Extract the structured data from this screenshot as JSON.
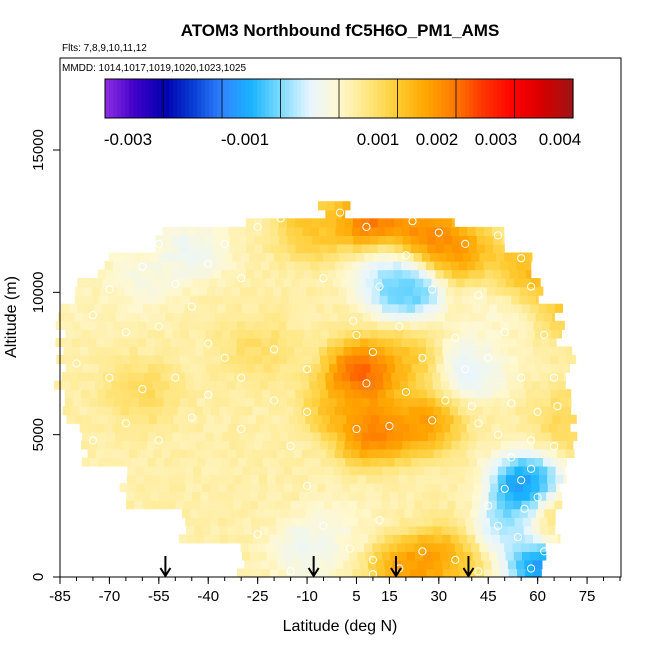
{
  "chart_data": {
    "type": "heatmap",
    "title": "ATOM3 Northbound fC5H6O_PM1_AMS",
    "flights_label": "Flts: 7,8,9,10,11,12",
    "mmdd_label": "MMDD: 1014,1017,1019,1020,1023,1025",
    "xlabel": "Latitude (deg N)",
    "ylabel": "Altitude (m)",
    "xlim": [
      -85,
      85
    ],
    "ylim": [
      0,
      17500
    ],
    "x_ticks": [
      "-85",
      "-70",
      "-55",
      "-40",
      "-25",
      "-10",
      "5",
      "15",
      "30",
      "45",
      "60",
      "75"
    ],
    "y_ticks": [
      "0",
      "5000",
      "10000",
      "15000"
    ],
    "colorbar": {
      "range": [
        -0.004,
        0.0042
      ],
      "tick_labels": [
        "-0.003",
        "-0.001",
        "0.001",
        "0.002",
        "0.003",
        "0.004"
      ],
      "colors": [
        "#8a2be2",
        "#3d00c8",
        "#0000b0",
        "#0a3fd6",
        "#2f86ff",
        "#19b4ff",
        "#7fdcff",
        "#e8f6ff",
        "#fff8d0",
        "#ffe680",
        "#ffcc33",
        "#ffa500",
        "#ff7a00",
        "#ff3300",
        "#ff0000",
        "#d60000",
        "#a21414"
      ]
    },
    "arrows_latitude": [
      -53,
      -8,
      17,
      39
    ],
    "grid": false,
    "legend": "none",
    "blobs": [
      {
        "lat": -8,
        "alt": 12300,
        "v": 0.0017
      },
      {
        "lat": 10,
        "alt": 12500,
        "v": 0.0032
      },
      {
        "lat": 25,
        "alt": 12000,
        "v": 0.0028
      },
      {
        "lat": 35,
        "alt": 11500,
        "v": 0.0025
      },
      {
        "lat": 55,
        "alt": 10500,
        "v": 0.0024
      },
      {
        "lat": 70,
        "alt": 9500,
        "v": 0.0016
      },
      {
        "lat": -45,
        "alt": 11500,
        "v": -0.0006
      },
      {
        "lat": -60,
        "alt": 10500,
        "v": -0.0003
      },
      {
        "lat": -75,
        "alt": 9500,
        "v": 0.0002
      },
      {
        "lat": 20,
        "alt": 10200,
        "v": -0.0022
      },
      {
        "lat": 14,
        "alt": 10800,
        "v": -0.0008
      },
      {
        "lat": 50,
        "alt": 9800,
        "v": -0.0004
      },
      {
        "lat": 48,
        "alt": 8200,
        "v": 0.0002
      },
      {
        "lat": 40,
        "alt": 7400,
        "v": -0.0009
      },
      {
        "lat": 7,
        "alt": 7200,
        "v": 0.0036
      },
      {
        "lat": 20,
        "alt": 7600,
        "v": 0.0016
      },
      {
        "lat": 10,
        "alt": 5100,
        "v": 0.003
      },
      {
        "lat": 25,
        "alt": 5400,
        "v": 0.0025
      },
      {
        "lat": 0,
        "alt": 6000,
        "v": 0.0018
      },
      {
        "lat": 56,
        "alt": 3200,
        "v": -0.003
      },
      {
        "lat": 52,
        "alt": 2000,
        "v": -0.0016
      },
      {
        "lat": 62,
        "alt": 400,
        "v": -0.003
      },
      {
        "lat": -10,
        "alt": 1000,
        "v": -0.0006
      },
      {
        "lat": 0,
        "alt": 1800,
        "v": -0.0001
      },
      {
        "lat": 15,
        "alt": 2500,
        "v": 0.0003
      },
      {
        "lat": 30,
        "alt": 700,
        "v": 0.0022
      },
      {
        "lat": 20,
        "alt": 300,
        "v": 0.0024
      },
      {
        "lat": -40,
        "alt": 3500,
        "v": 0.0003
      },
      {
        "lat": -60,
        "alt": 6500,
        "v": 0.0011
      },
      {
        "lat": 70,
        "alt": 5500,
        "v": 0.0012
      },
      {
        "lat": 65,
        "alt": 2000,
        "v": 0.0015
      },
      {
        "lat": -25,
        "alt": 8000,
        "v": 0.001
      },
      {
        "lat": 35,
        "alt": 3000,
        "v": 0.0004
      }
    ],
    "observations": [
      [
        -8,
        13100
      ],
      [
        -18,
        12600
      ],
      [
        -25,
        12300
      ],
      [
        -35,
        11700
      ],
      [
        -55,
        11700
      ],
      [
        -60,
        10900
      ],
      [
        -40,
        11000
      ],
      [
        -30,
        10500
      ],
      [
        -50,
        10300
      ],
      [
        -70,
        10100
      ],
      [
        -45,
        9500
      ],
      [
        -75,
        9200
      ],
      [
        -55,
        8800
      ],
      [
        -65,
        8600
      ],
      [
        -40,
        8200
      ],
      [
        -20,
        8000
      ],
      [
        -35,
        7700
      ],
      [
        -10,
        7300
      ],
      [
        -30,
        7000
      ],
      [
        -50,
        7000
      ],
      [
        -70,
        7000
      ],
      [
        -80,
        7500
      ],
      [
        -60,
        6600
      ],
      [
        -40,
        6400
      ],
      [
        -20,
        6200
      ],
      [
        -10,
        5800
      ],
      [
        -45,
        5600
      ],
      [
        -65,
        5400
      ],
      [
        -30,
        5200
      ],
      [
        -55,
        4800
      ],
      [
        -75,
        4800
      ],
      [
        -15,
        4600
      ],
      [
        0,
        12800
      ],
      [
        8,
        12300
      ],
      [
        15,
        12900
      ],
      [
        22,
        12500
      ],
      [
        30,
        12100
      ],
      [
        38,
        11700
      ],
      [
        48,
        12000
      ],
      [
        55,
        11200
      ],
      [
        62,
        11500
      ],
      [
        12,
        10200
      ],
      [
        28,
        10100
      ],
      [
        42,
        9900
      ],
      [
        58,
        10200
      ],
      [
        66,
        9900
      ],
      [
        4,
        9000
      ],
      [
        18,
        8800
      ],
      [
        35,
        8400
      ],
      [
        50,
        8600
      ],
      [
        62,
        8500
      ],
      [
        10,
        7900
      ],
      [
        25,
        7700
      ],
      [
        38,
        7300
      ],
      [
        45,
        7700
      ],
      [
        55,
        7000
      ],
      [
        65,
        7000
      ],
      [
        8,
        6800
      ],
      [
        20,
        6500
      ],
      [
        32,
        6200
      ],
      [
        40,
        6000
      ],
      [
        52,
        6100
      ],
      [
        60,
        5800
      ],
      [
        66,
        6000
      ],
      [
        5,
        5200
      ],
      [
        15,
        5300
      ],
      [
        28,
        5500
      ],
      [
        42,
        5400
      ],
      [
        48,
        5000
      ],
      [
        58,
        4800
      ],
      [
        65,
        4600
      ],
      [
        52,
        4200
      ],
      [
        58,
        3800
      ],
      [
        55,
        3400
      ],
      [
        50,
        3100
      ],
      [
        60,
        2800
      ],
      [
        56,
        2400
      ],
      [
        48,
        1800
      ],
      [
        54,
        1400
      ],
      [
        62,
        900
      ],
      [
        58,
        300
      ],
      [
        -5,
        1800
      ],
      [
        3,
        1000
      ],
      [
        10,
        600
      ],
      [
        10,
        100
      ],
      [
        18,
        300
      ],
      [
        25,
        900
      ],
      [
        35,
        600
      ],
      [
        42,
        200
      ],
      [
        -15,
        200
      ],
      [
        -10,
        3200
      ],
      [
        12,
        2000
      ],
      [
        -25,
        1500
      ],
      [
        45,
        2500
      ],
      [
        5,
        8500
      ],
      [
        -5,
        10500
      ],
      [
        20,
        11300
      ]
    ]
  }
}
